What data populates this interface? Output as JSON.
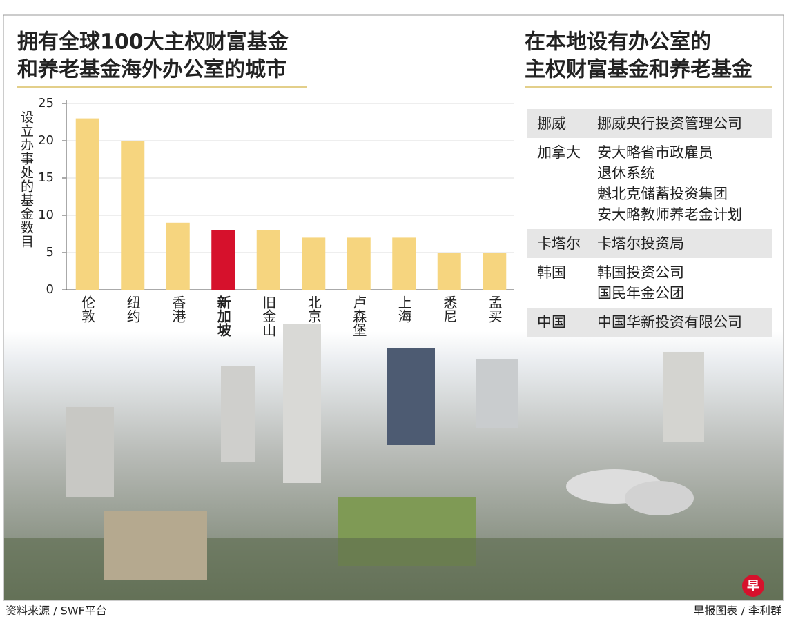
{
  "chart_data": {
    "type": "bar",
    "title": [
      "拥有全球100大主权财富基金",
      "和养老基金海外办公室的城市"
    ],
    "y_label": "设立办事处的基金数目",
    "categories": [
      "伦敦",
      "纽约",
      "香港",
      "新加坡",
      "旧金山",
      "北京",
      "卢森堡",
      "上海",
      "悉尼",
      "孟买"
    ],
    "values": [
      23,
      20,
      9,
      8,
      8,
      7,
      7,
      7,
      5,
      5
    ],
    "colors": [
      "#f6d57f",
      "#f6d57f",
      "#f6d57f",
      "#d6112c",
      "#f6d57f",
      "#f6d57f",
      "#f6d57f",
      "#f6d57f",
      "#f6d57f",
      "#f6d57f"
    ],
    "ylim": [
      0,
      25
    ],
    "yticks": [
      0,
      5,
      10,
      15,
      20,
      25
    ],
    "grid": true
  },
  "table": {
    "title": [
      "在本地设有办公室的",
      "主权财富基金和养老基金"
    ],
    "rows": [
      {
        "country": "挪威",
        "funds": [
          "挪威央行投资管理公司"
        ]
      },
      {
        "country": "加拿大",
        "funds": [
          "安大略省市政雇员",
          "退休系统",
          "魁北克储蓄投资集团",
          "安大略教师养老金计划"
        ]
      },
      {
        "country": "卡塔尔",
        "funds": [
          "卡塔尔投资局"
        ]
      },
      {
        "country": "韩国",
        "funds": [
          "韩国投资公司",
          "国民年金公团"
        ]
      },
      {
        "country": "中国",
        "funds": [
          "中国华新投资有限公司"
        ]
      }
    ]
  },
  "footer": {
    "source": "资料来源 / SWF平台",
    "credit": "早报图表 / 李利群",
    "logo": "早"
  }
}
